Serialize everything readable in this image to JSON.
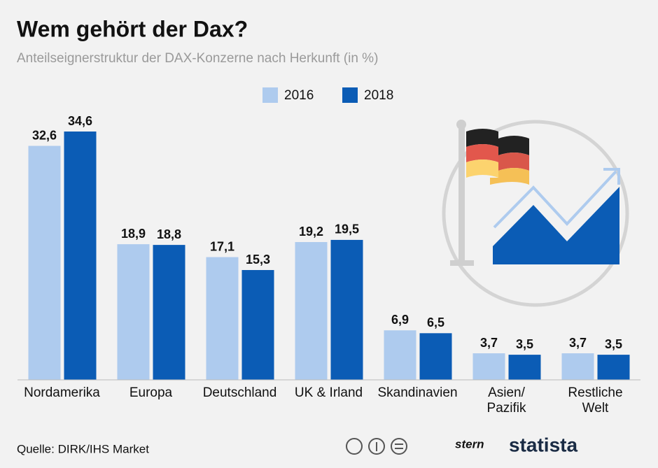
{
  "chart_data": {
    "type": "bar",
    "title": "Wem gehört der Dax?",
    "subtitle": "Anteilseignerstruktur der DAX-Konzerne nach Herkunft (in %)",
    "categories": [
      "Nordamerika",
      "Europa",
      "Deutschland",
      "UK & Irland",
      "Skandinavien",
      "Asien/\nPazifik",
      "Restliche\nWelt"
    ],
    "series": [
      {
        "name": "2016",
        "color": "#aecbee",
        "values": [
          32.6,
          18.9,
          17.1,
          19.2,
          6.9,
          3.7,
          3.7
        ],
        "value_labels": [
          "32,6",
          "18,9",
          "17,1",
          "19,2",
          "6,9",
          "3,7",
          "3,7"
        ]
      },
      {
        "name": "2018",
        "color": "#0b5cb5",
        "values": [
          34.6,
          18.8,
          15.3,
          19.5,
          6.5,
          3.5,
          3.5
        ],
        "value_labels": [
          "34,6",
          "18,8",
          "15,3",
          "19,5",
          "6,5",
          "3,5",
          "3,5"
        ]
      }
    ]
  },
  "footer": {
    "source": "Quelle: DIRK/IHS Market",
    "logos": [
      "stern",
      "statista"
    ]
  }
}
